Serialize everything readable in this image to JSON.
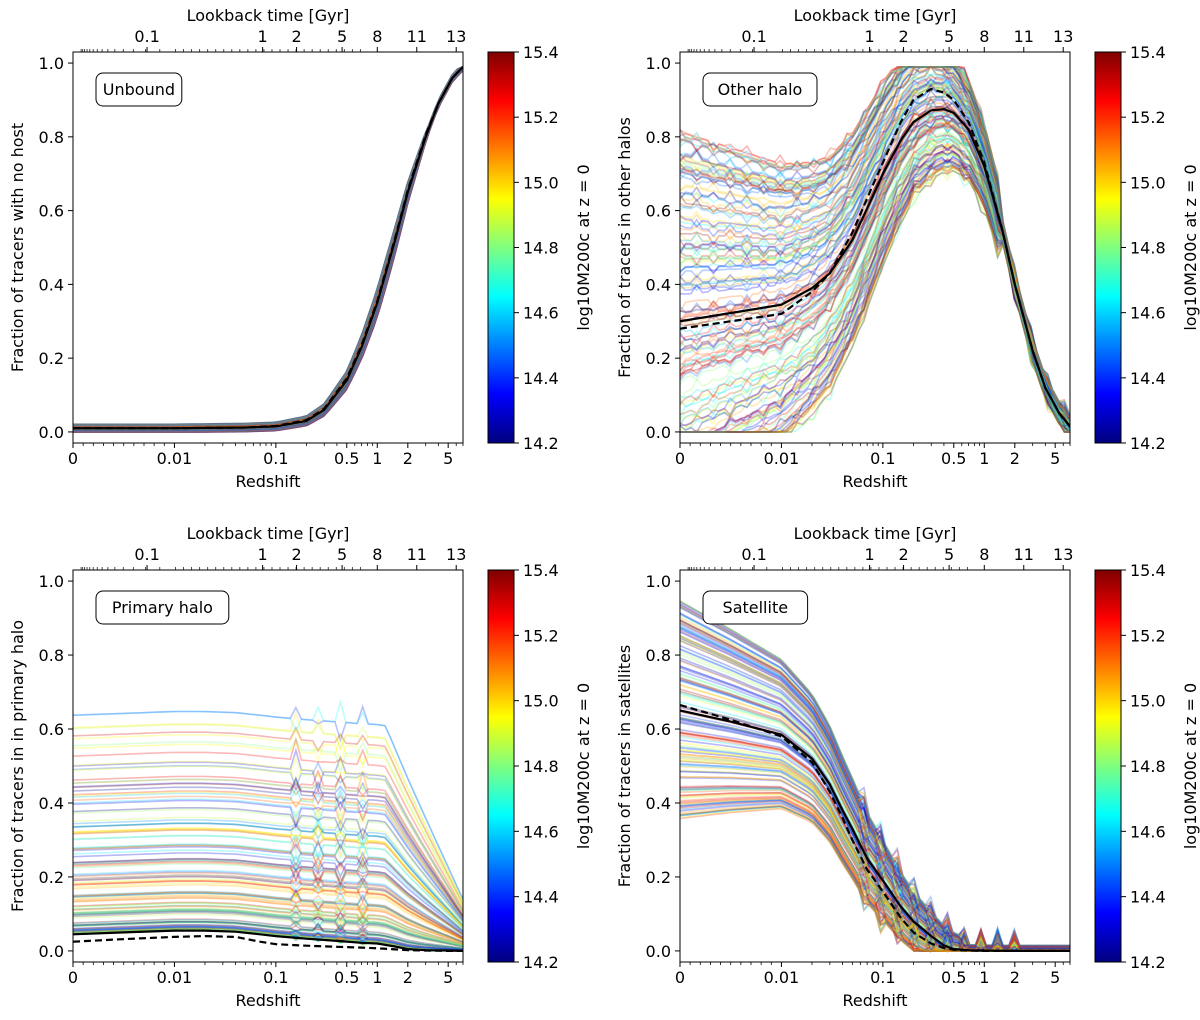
{
  "figure": {
    "layout": "2x2 grid"
  },
  "colors": {
    "median_line": "#000000",
    "colormap": [
      "#00007f",
      "#0000ff",
      "#007fff",
      "#00ffff",
      "#7fff7f",
      "#ffff00",
      "#ff7f00",
      "#ff0000",
      "#7f0000"
    ]
  },
  "chart_data": [
    {
      "id": "unbound",
      "type": "line",
      "panel": "top-left",
      "label": "Unbound",
      "xlabel": "Redshift",
      "ylabel": "Fraction of tracers with no host",
      "top_axis_label": "Lookback time [Gyr]",
      "x_scale": "symlog",
      "xlim": [
        0,
        7
      ],
      "ylim": [
        -0.03,
        1.03
      ],
      "x_ticks": [
        {
          "v": 0,
          "label": "0"
        },
        {
          "v": 0.01,
          "label": "0.01"
        },
        {
          "v": 0.1,
          "label": "0.1"
        },
        {
          "v": 0.5,
          "label": "0.5"
        },
        {
          "v": 1,
          "label": "1"
        },
        {
          "v": 2,
          "label": "2"
        },
        {
          "v": 5,
          "label": "5"
        }
      ],
      "y_ticks": [
        0.0,
        0.2,
        0.4,
        0.6,
        0.8,
        1.0
      ],
      "top_ticks": [
        {
          "z": 0.0073,
          "label": "0.1"
        },
        {
          "z": 0.074,
          "label": "1"
        },
        {
          "z": 0.16,
          "label": "2"
        },
        {
          "z": 0.45,
          "label": "5"
        },
        {
          "z": 1.0,
          "label": "8"
        },
        {
          "z": 2.45,
          "label": "11"
        },
        {
          "z": 6.0,
          "label": "13"
        }
      ],
      "colorbar": {
        "label": "log10M200c at z = 0",
        "min": 14.2,
        "max": 15.4,
        "ticks": [
          "14.2",
          "14.4",
          "14.6",
          "14.8",
          "15.0",
          "15.2",
          "15.4"
        ]
      },
      "series": [
        {
          "name": "median",
          "style": "solid",
          "x": [
            0,
            0.01,
            0.05,
            0.1,
            0.2,
            0.3,
            0.5,
            0.7,
            1.0,
            1.5,
            2.0,
            3.0,
            4.0,
            5.5,
            7.0
          ],
          "y": [
            0.01,
            0.01,
            0.012,
            0.015,
            0.03,
            0.06,
            0.14,
            0.23,
            0.35,
            0.52,
            0.65,
            0.8,
            0.89,
            0.96,
            0.99
          ]
        },
        {
          "name": "mean",
          "style": "dashed",
          "x": [
            0,
            0.01,
            0.05,
            0.1,
            0.2,
            0.3,
            0.5,
            0.7,
            1.0,
            1.5,
            2.0,
            3.0,
            4.0,
            5.5,
            7.0
          ],
          "y": [
            0.01,
            0.01,
            0.012,
            0.016,
            0.032,
            0.063,
            0.145,
            0.235,
            0.355,
            0.525,
            0.655,
            0.805,
            0.89,
            0.96,
            0.99
          ]
        }
      ]
    },
    {
      "id": "other-halo",
      "type": "line",
      "panel": "top-right",
      "label": "Other halo",
      "xlabel": "Redshift",
      "ylabel": "Fraction of tracers in other halos",
      "top_axis_label": "Lookback time [Gyr]",
      "x_scale": "symlog",
      "xlim": [
        0,
        7
      ],
      "ylim": [
        -0.03,
        1.03
      ],
      "x_ticks": [
        {
          "v": 0,
          "label": "0"
        },
        {
          "v": 0.01,
          "label": "0.01"
        },
        {
          "v": 0.1,
          "label": "0.1"
        },
        {
          "v": 0.5,
          "label": "0.5"
        },
        {
          "v": 1,
          "label": "1"
        },
        {
          "v": 2,
          "label": "2"
        },
        {
          "v": 5,
          "label": "5"
        }
      ],
      "y_ticks": [
        0.0,
        0.2,
        0.4,
        0.6,
        0.8,
        1.0
      ],
      "top_ticks": [
        {
          "z": 0.0073,
          "label": "0.1"
        },
        {
          "z": 0.074,
          "label": "1"
        },
        {
          "z": 0.16,
          "label": "2"
        },
        {
          "z": 0.45,
          "label": "5"
        },
        {
          "z": 1.0,
          "label": "8"
        },
        {
          "z": 2.45,
          "label": "11"
        },
        {
          "z": 6.0,
          "label": "13"
        }
      ],
      "colorbar": {
        "label": "log10M200c at z = 0",
        "min": 14.2,
        "max": 15.4,
        "ticks": [
          "14.2",
          "14.4",
          "14.6",
          "14.8",
          "15.0",
          "15.2",
          "15.4"
        ]
      },
      "series": [
        {
          "name": "median",
          "style": "solid",
          "x": [
            0,
            0.01,
            0.02,
            0.03,
            0.05,
            0.08,
            0.1,
            0.15,
            0.2,
            0.3,
            0.4,
            0.5,
            0.7,
            1.0,
            1.5,
            2.0,
            3.0,
            4.0,
            5.5,
            7.0
          ],
          "y": [
            0.3,
            0.345,
            0.39,
            0.43,
            0.52,
            0.64,
            0.7,
            0.79,
            0.84,
            0.872,
            0.875,
            0.865,
            0.82,
            0.72,
            0.55,
            0.4,
            0.22,
            0.12,
            0.05,
            0.015
          ]
        },
        {
          "name": "mean",
          "style": "dashed",
          "x": [
            0,
            0.01,
            0.02,
            0.03,
            0.05,
            0.08,
            0.1,
            0.15,
            0.2,
            0.3,
            0.4,
            0.5,
            0.7,
            1.0,
            1.5,
            2.0,
            3.0,
            4.0,
            5.5,
            7.0
          ],
          "y": [
            0.28,
            0.32,
            0.38,
            0.43,
            0.54,
            0.67,
            0.73,
            0.84,
            0.9,
            0.93,
            0.92,
            0.9,
            0.84,
            0.73,
            0.55,
            0.4,
            0.22,
            0.12,
            0.05,
            0.015
          ]
        }
      ]
    },
    {
      "id": "primary-halo",
      "type": "line",
      "panel": "bottom-left",
      "label": "Primary halo",
      "xlabel": "Redshift",
      "ylabel": "Fraction of tracers in in primary halo",
      "top_axis_label": "Lookback time [Gyr]",
      "x_scale": "symlog",
      "xlim": [
        0,
        7
      ],
      "ylim": [
        -0.03,
        1.03
      ],
      "x_ticks": [
        {
          "v": 0,
          "label": "0"
        },
        {
          "v": 0.01,
          "label": "0.01"
        },
        {
          "v": 0.1,
          "label": "0.1"
        },
        {
          "v": 0.5,
          "label": "0.5"
        },
        {
          "v": 1,
          "label": "1"
        },
        {
          "v": 2,
          "label": "2"
        },
        {
          "v": 5,
          "label": "5"
        }
      ],
      "y_ticks": [
        0.0,
        0.2,
        0.4,
        0.6,
        0.8,
        1.0
      ],
      "top_ticks": [
        {
          "z": 0.0073,
          "label": "0.1"
        },
        {
          "z": 0.074,
          "label": "1"
        },
        {
          "z": 0.16,
          "label": "2"
        },
        {
          "z": 0.45,
          "label": "5"
        },
        {
          "z": 1.0,
          "label": "8"
        },
        {
          "z": 2.45,
          "label": "11"
        },
        {
          "z": 6.0,
          "label": "13"
        }
      ],
      "colorbar": {
        "label": "log10M200c at z = 0",
        "min": 14.2,
        "max": 15.4,
        "ticks": [
          "14.2",
          "14.4",
          "14.6",
          "14.8",
          "15.0",
          "15.2",
          "15.4"
        ]
      },
      "series": [
        {
          "name": "median",
          "style": "solid",
          "x": [
            0,
            0.005,
            0.01,
            0.02,
            0.04,
            0.07,
            0.1,
            0.2,
            0.4,
            0.7,
            1.0,
            1.5,
            2.0,
            3.0,
            5.0,
            7.0
          ],
          "y": [
            0.045,
            0.05,
            0.055,
            0.055,
            0.052,
            0.045,
            0.04,
            0.033,
            0.027,
            0.022,
            0.02,
            0.012,
            0.005,
            0.002,
            0.001,
            0.0
          ]
        },
        {
          "name": "mean",
          "style": "dashed",
          "x": [
            0,
            0.005,
            0.01,
            0.02,
            0.04,
            0.07,
            0.1,
            0.2,
            0.4,
            0.7,
            1.0,
            1.5,
            2.0,
            3.0,
            5.0,
            7.0
          ],
          "y": [
            0.025,
            0.032,
            0.038,
            0.04,
            0.038,
            0.025,
            0.018,
            0.014,
            0.011,
            0.009,
            0.007,
            0.004,
            0.002,
            0.001,
            0.0,
            0.0
          ]
        }
      ]
    },
    {
      "id": "satellite",
      "type": "line",
      "panel": "bottom-right",
      "label": "Satellite",
      "xlabel": "Redshift",
      "ylabel": "Fraction of tracers in satellites",
      "top_axis_label": "Lookback time [Gyr]",
      "x_scale": "symlog",
      "xlim": [
        0,
        7
      ],
      "ylim": [
        -0.03,
        1.03
      ],
      "x_ticks": [
        {
          "v": 0,
          "label": "0"
        },
        {
          "v": 0.01,
          "label": "0.01"
        },
        {
          "v": 0.1,
          "label": "0.1"
        },
        {
          "v": 0.5,
          "label": "0.5"
        },
        {
          "v": 1,
          "label": "1"
        },
        {
          "v": 2,
          "label": "2"
        },
        {
          "v": 5,
          "label": "5"
        }
      ],
      "y_ticks": [
        0.0,
        0.2,
        0.4,
        0.6,
        0.8,
        1.0
      ],
      "top_ticks": [
        {
          "z": 0.0073,
          "label": "0.1"
        },
        {
          "z": 0.074,
          "label": "1"
        },
        {
          "z": 0.16,
          "label": "2"
        },
        {
          "z": 0.45,
          "label": "5"
        },
        {
          "z": 1.0,
          "label": "8"
        },
        {
          "z": 2.45,
          "label": "11"
        },
        {
          "z": 6.0,
          "label": "13"
        }
      ],
      "colorbar": {
        "label": "log10M200c at z = 0",
        "min": 14.2,
        "max": 15.4,
        "ticks": [
          "14.2",
          "14.4",
          "14.6",
          "14.8",
          "15.0",
          "15.2",
          "15.4"
        ]
      },
      "series": [
        {
          "name": "median",
          "style": "solid",
          "x": [
            0,
            0.005,
            0.01,
            0.02,
            0.03,
            0.04,
            0.05,
            0.07,
            0.1,
            0.15,
            0.2,
            0.3,
            0.4,
            0.5,
            0.7,
            1.0,
            2.0,
            7.0
          ],
          "y": [
            0.65,
            0.62,
            0.585,
            0.52,
            0.45,
            0.38,
            0.33,
            0.25,
            0.19,
            0.12,
            0.08,
            0.04,
            0.015,
            0.005,
            0.002,
            0.001,
            0.0,
            0.0
          ]
        },
        {
          "name": "mean",
          "style": "dashed",
          "x": [
            0,
            0.005,
            0.01,
            0.02,
            0.03,
            0.04,
            0.05,
            0.07,
            0.1,
            0.15,
            0.2,
            0.3,
            0.4,
            0.5,
            0.7,
            1.0,
            2.0,
            7.0
          ],
          "y": [
            0.665,
            0.625,
            0.58,
            0.51,
            0.43,
            0.36,
            0.3,
            0.22,
            0.16,
            0.09,
            0.05,
            0.02,
            0.008,
            0.003,
            0.001,
            0.0,
            0.0,
            0.0
          ]
        }
      ]
    }
  ]
}
